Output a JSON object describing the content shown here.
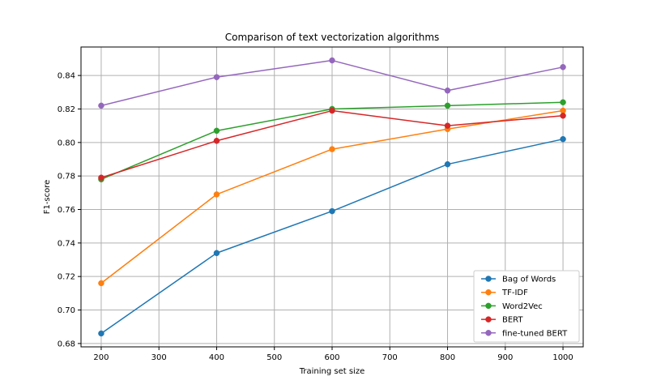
{
  "chart_data": {
    "type": "line",
    "title": "Comparison of text vectorization algorithms",
    "xlabel": "Training set size",
    "ylabel": "F1-score",
    "xlim": [
      165,
      1035
    ],
    "ylim": [
      0.678,
      0.857
    ],
    "x_ticks": [
      200,
      300,
      400,
      500,
      600,
      700,
      800,
      900,
      1000
    ],
    "y_ticks": [
      0.68,
      0.7,
      0.72,
      0.74,
      0.76,
      0.78,
      0.8,
      0.82,
      0.84
    ],
    "grid": true,
    "legend_position": "bottom-right",
    "x": [
      200,
      400,
      600,
      800,
      1000
    ],
    "series": [
      {
        "name": "Bag of Words",
        "color": "#1f77b4",
        "values": [
          0.686,
          0.734,
          0.759,
          0.787,
          0.802
        ]
      },
      {
        "name": "TF-IDF",
        "color": "#ff7f0e",
        "values": [
          0.716,
          0.769,
          0.796,
          0.808,
          0.819
        ]
      },
      {
        "name": "Word2Vec",
        "color": "#2ca02c",
        "values": [
          0.778,
          0.807,
          0.82,
          0.822,
          0.824
        ]
      },
      {
        "name": "BERT",
        "color": "#d62728",
        "values": [
          0.779,
          0.801,
          0.819,
          0.81,
          0.816
        ]
      },
      {
        "name": "fine-tuned BERT",
        "color": "#9467bd",
        "values": [
          0.822,
          0.839,
          0.849,
          0.831,
          0.845
        ]
      }
    ]
  }
}
